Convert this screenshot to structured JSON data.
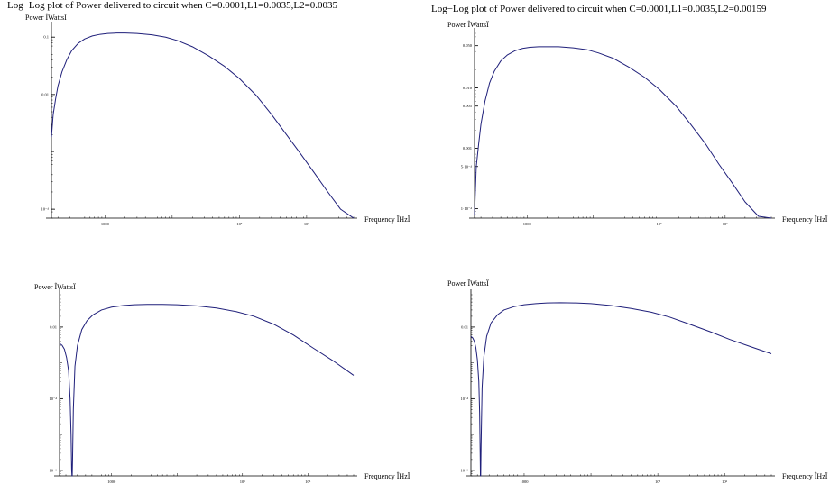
{
  "panels": [
    {
      "title": "Log−Log plot of Power delivered to circuit when C=0.0001,L1=0.0035,L2=0.0035",
      "chart_data": {
        "type": "line",
        "title": "Log−Log plot of Power delivered to circuit when C=0.0001,L1=0.0035,L2=0.0035",
        "xlabel": "Frequency ÎHzÏ",
        "ylabel": "Power ÎWattsÏ",
        "x_scale": "log",
        "y_scale": "log",
        "xlim": [
          160,
          5000000
        ],
        "ylim": [
          7e-05,
          0.15
        ],
        "x_ticks": [
          {
            "value": 1000,
            "label": "1000"
          },
          {
            "value": 100000,
            "label": "10⁵"
          },
          {
            "value": 1000000,
            "label": "10⁶"
          }
        ],
        "y_ticks": [
          {
            "value": 0.1,
            "label": "0.1"
          },
          {
            "value": 0.01,
            "label": "0.01"
          },
          {
            "value": 0.0001,
            "label": "10⁻⁴"
          }
        ],
        "series": [
          {
            "color": "#1f1f7a",
            "x": [
              160,
              170,
              185,
              200,
              230,
              270,
              320,
              400,
              500,
              650,
              850,
              1100,
              1500,
              2000,
              3000,
              5000,
              8000,
              12000,
              20000,
              35000,
              60000,
              100000,
              180000,
              300000,
              500000,
              800000,
              1300000,
              2000000,
              3200000,
              5000000
            ],
            "y": [
              0.0018,
              0.0045,
              0.0085,
              0.014,
              0.025,
              0.04,
              0.058,
              0.078,
              0.093,
              0.105,
              0.112,
              0.116,
              0.118,
              0.118,
              0.116,
              0.11,
              0.1,
              0.087,
              0.068,
              0.047,
              0.031,
              0.019,
              0.0095,
              0.0045,
              0.002,
              0.00095,
              0.00043,
              0.00021,
              0.0001,
              5e-05
            ]
          }
        ]
      }
    },
    {
      "title": "Log−Log plot of Power delivered to circuit when C=0.0001,L1=0.0035,L2=0.00159",
      "chart_data": {
        "type": "line",
        "title": "Log−Log plot of Power delivered to circuit when C=0.0001,L1=0.0035,L2=0.00159",
        "xlabel": "Frequency ÎHzÏ",
        "ylabel": "Power ÎWattsÏ",
        "x_scale": "log",
        "y_scale": "log",
        "xlim": [
          160,
          5000000
        ],
        "ylim": [
          7e-05,
          0.08
        ],
        "x_ticks": [
          {
            "value": 1000,
            "label": "1000"
          },
          {
            "value": 100000,
            "label": "10⁵"
          },
          {
            "value": 1000000,
            "label": "10⁶"
          }
        ],
        "y_ticks": [
          {
            "value": 0.05,
            "label": "0.050"
          },
          {
            "value": 0.01,
            "label": "0.010"
          },
          {
            "value": 0.005,
            "label": "0.005"
          },
          {
            "value": 0.001,
            "label": "0.001"
          },
          {
            "value": 0.0005,
            "label": "5·10⁻⁴"
          },
          {
            "value": 0.0001,
            "label": "1·10⁻⁴"
          }
        ],
        "series": [
          {
            "color": "#1f1f7a",
            "x": [
              160,
              170,
              185,
              200,
              230,
              270,
              320,
              400,
              500,
              650,
              850,
              1100,
              1500,
              2000,
              3000,
              5000,
              8000,
              12000,
              20000,
              35000,
              60000,
              100000,
              180000,
              300000,
              500000,
              800000,
              1300000,
              2000000,
              3200000,
              5000000
            ],
            "y": [
              8e-05,
              0.0005,
              0.0012,
              0.0025,
              0.006,
              0.012,
              0.019,
              0.028,
              0.035,
              0.041,
              0.045,
              0.047,
              0.048,
              0.048,
              0.048,
              0.046,
              0.043,
              0.038,
              0.031,
              0.022,
              0.015,
              0.0095,
              0.005,
              0.0025,
              0.0012,
              0.00055,
              0.00026,
              0.00013,
              7.5e-05,
              5.5e-05
            ]
          }
        ]
      }
    },
    {
      "title": "",
      "chart_data": {
        "type": "line",
        "title": "",
        "xlabel": "Frequency ÎHzÏ",
        "ylabel": "Power ÎWattsÏ",
        "x_scale": "log",
        "y_scale": "log",
        "xlim": [
          160,
          5000000
        ],
        "ylim": [
          7e-07,
          0.08
        ],
        "x_ticks": [
          {
            "value": 1000,
            "label": "1000"
          },
          {
            "value": 100000,
            "label": "10⁵"
          },
          {
            "value": 1000000,
            "label": "10⁶"
          }
        ],
        "y_ticks": [
          {
            "value": 0.01,
            "label": "0.01"
          },
          {
            "value": 0.0001,
            "label": "10⁻⁴"
          },
          {
            "value": 1e-06,
            "label": "10⁻⁶"
          }
        ],
        "series": [
          {
            "color": "#1f1f7a",
            "x": [
              160,
              175,
              190,
              205,
              220,
              232,
              240,
              245,
              248,
              250,
              253,
              260,
              275,
              300,
              350,
              420,
              520,
              700,
              1000,
              1500,
              2200,
              3500,
              6000,
              10000,
              20000,
              40000,
              80000,
              150000,
              300000,
              600000,
              1200000,
              2500000,
              5000000
            ],
            "y": [
              0.0035,
              0.0031,
              0.0024,
              0.0014,
              0.0006,
              0.0001,
              1e-05,
              1e-06,
              7e-07,
              7e-07,
              2e-06,
              5e-05,
              0.0008,
              0.003,
              0.0085,
              0.015,
              0.022,
              0.03,
              0.036,
              0.04,
              0.042,
              0.043,
              0.043,
              0.042,
              0.039,
              0.034,
              0.027,
              0.02,
              0.012,
              0.006,
              0.0026,
              0.0011,
              0.00045
            ]
          }
        ]
      }
    },
    {
      "title": "",
      "chart_data": {
        "type": "line",
        "title": "",
        "xlabel": "Frequency ÎHzÏ",
        "ylabel": "Power ÎWattsÏ",
        "x_scale": "log",
        "y_scale": "log",
        "xlim": [
          160,
          5000000
        ],
        "ylim": [
          7e-07,
          0.08
        ],
        "x_ticks": [
          {
            "value": 1000,
            "label": "1000"
          },
          {
            "value": 100000,
            "label": "10⁵"
          },
          {
            "value": 1000000,
            "label": "10⁶"
          }
        ],
        "y_ticks": [
          {
            "value": 0.01,
            "label": "0.01"
          },
          {
            "value": 0.0001,
            "label": "10⁻⁴"
          },
          {
            "value": 1e-06,
            "label": "10⁻⁶"
          }
        ],
        "series": [
          {
            "color": "#1f1f7a",
            "x": [
              160,
              170,
              180,
              190,
              200,
              210,
              216,
              220,
              222,
              224,
              227,
              235,
              250,
              275,
              320,
              400,
              500,
              700,
              1000,
              1500,
              2200,
              3500,
              6000,
              10000,
              20000,
              40000,
              80000,
              150000,
              300000,
              600000,
              1200000,
              2500000,
              5000000
            ],
            "y": [
              0.0055,
              0.005,
              0.004,
              0.0026,
              0.0012,
              0.0003,
              4e-05,
              3e-06,
              7e-07,
              7e-07,
              5e-06,
              0.0002,
              0.0015,
              0.0055,
              0.013,
              0.022,
              0.03,
              0.037,
              0.042,
              0.045,
              0.047,
              0.048,
              0.047,
              0.045,
              0.04,
              0.033,
              0.026,
              0.019,
              0.012,
              0.0075,
              0.0045,
              0.0028,
              0.0018
            ]
          }
        ]
      }
    }
  ]
}
